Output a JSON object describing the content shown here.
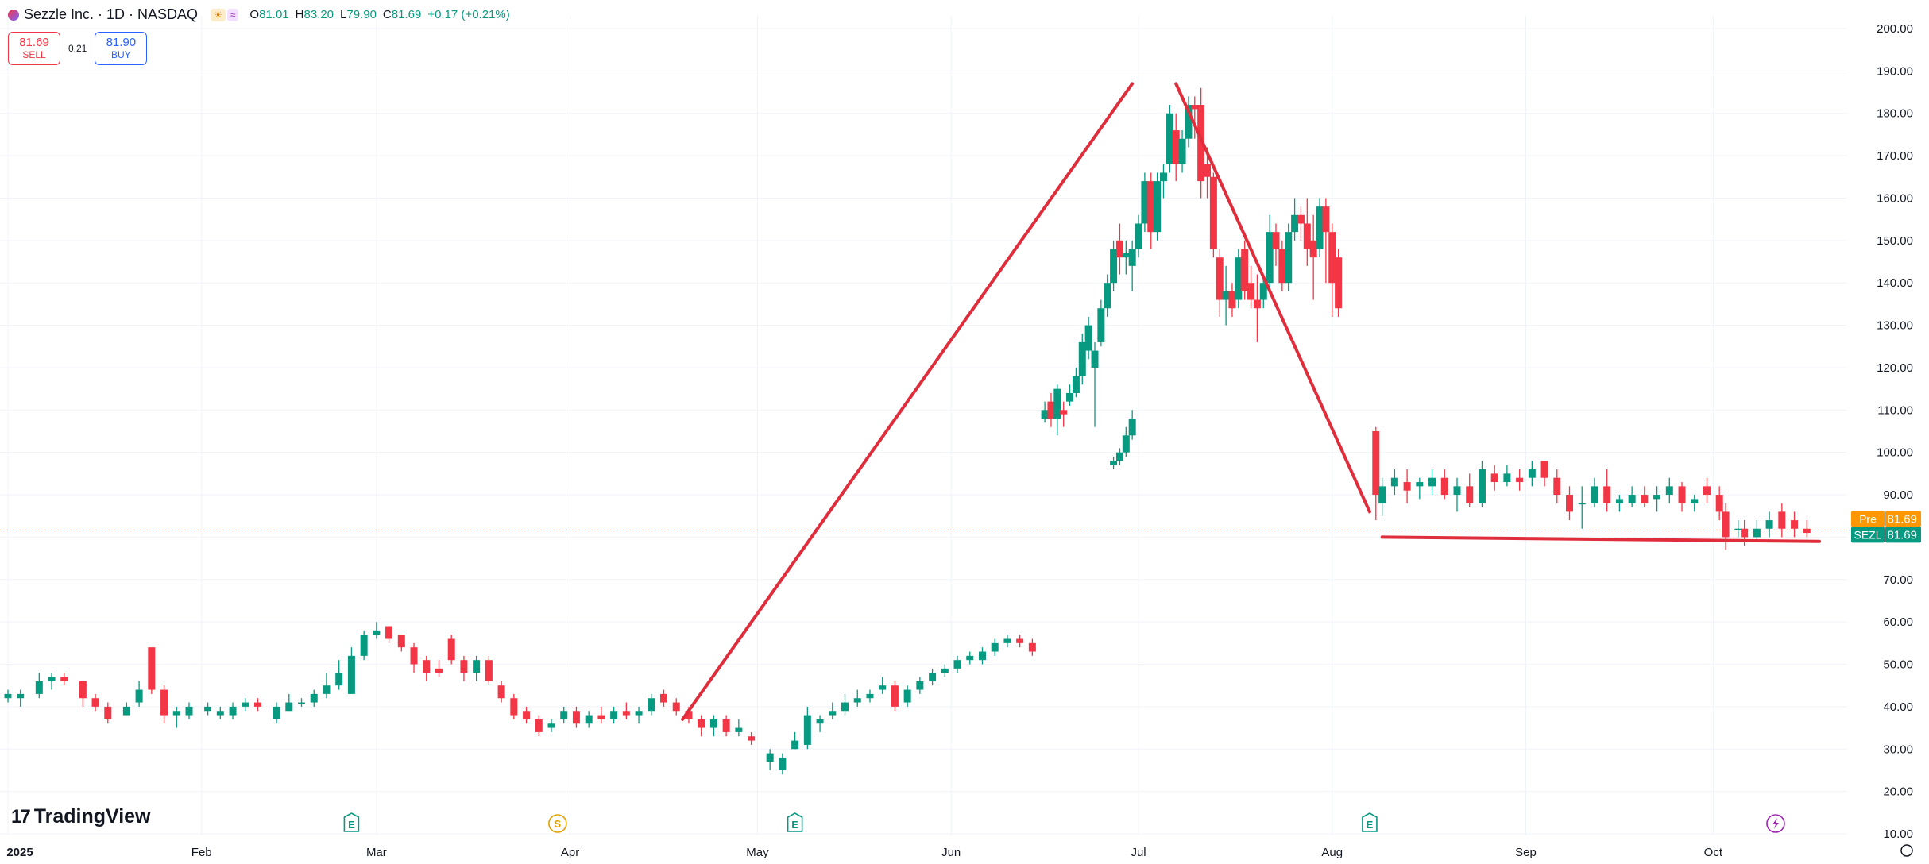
{
  "header": {
    "title": "Sezzle Inc. · 1D · NASDAQ",
    "open_label": "O",
    "open": "81.01",
    "high_label": "H",
    "high": "83.20",
    "low_label": "L",
    "low": "79.90",
    "close_label": "C",
    "close": "81.69",
    "change": "+0.17 (+0.21%)"
  },
  "trade": {
    "sell_price": "81.69",
    "sell_label": "SELL",
    "spread": "0.21",
    "buy_price": "81.90",
    "buy_label": "BUY"
  },
  "branding": {
    "name": "TradingView"
  },
  "colors": {
    "up": "#089981",
    "down": "#f23645",
    "drawing": "#e02d3c",
    "pre_badge": "#ff9800",
    "accent": "#2962ff"
  },
  "chart_data": {
    "type": "candlestick",
    "symbol": "SEZL",
    "ylim": [
      10,
      200
    ],
    "y_ticks": [
      "200.00",
      "190.00",
      "180.00",
      "170.00",
      "160.00",
      "150.00",
      "140.00",
      "130.00",
      "120.00",
      "110.00",
      "100.00",
      "90.00",
      "80.00",
      "70.00",
      "60.00",
      "50.00",
      "40.00",
      "30.00",
      "20.00",
      "10.00"
    ],
    "x_ticks": [
      {
        "label": "2025",
        "date": "2025-01-01",
        "bold": true
      },
      {
        "label": "Feb",
        "date": "2025-02-01"
      },
      {
        "label": "Mar",
        "date": "2025-03-01"
      },
      {
        "label": "Apr",
        "date": "2025-04-01"
      },
      {
        "label": "May",
        "date": "2025-05-01"
      },
      {
        "label": "Jun",
        "date": "2025-06-01"
      },
      {
        "label": "Jul",
        "date": "2025-07-01"
      },
      {
        "label": "Aug",
        "date": "2025-08-01"
      },
      {
        "label": "Sep",
        "date": "2025-09-01"
      },
      {
        "label": "Oct",
        "date": "2025-10-01"
      }
    ],
    "last_price": "81.69",
    "price_labels": [
      {
        "tag": "Pre",
        "value": "81.69",
        "color": "#ff9800"
      },
      {
        "tag": "SEZL",
        "value": "81.69",
        "color": "#089981"
      }
    ],
    "events": [
      {
        "type": "E",
        "date": "2025-02-25"
      },
      {
        "type": "S",
        "date": "2025-03-30"
      },
      {
        "type": "E",
        "date": "2025-05-07"
      },
      {
        "type": "E",
        "date": "2025-08-07"
      },
      {
        "type": "lightning",
        "date": "2025-10-11"
      }
    ],
    "candles": [
      {
        "d": "2025-01-01",
        "o": 42,
        "h": 44,
        "l": 41,
        "c": 43
      },
      {
        "d": "2025-01-03",
        "o": 42,
        "h": 44,
        "l": 40,
        "c": 43
      },
      {
        "d": "2025-01-06",
        "o": 43,
        "h": 48,
        "l": 42,
        "c": 46
      },
      {
        "d": "2025-01-08",
        "o": 46,
        "h": 48,
        "l": 44,
        "c": 47
      },
      {
        "d": "2025-01-10",
        "o": 47,
        "h": 48,
        "l": 45,
        "c": 46
      },
      {
        "d": "2025-01-13",
        "o": 46,
        "h": 46,
        "l": 40,
        "c": 42
      },
      {
        "d": "2025-01-15",
        "o": 42,
        "h": 43,
        "l": 39,
        "c": 40
      },
      {
        "d": "2025-01-17",
        "o": 40,
        "h": 41,
        "l": 36,
        "c": 37
      },
      {
        "d": "2025-01-20",
        "o": 38,
        "h": 41,
        "l": 38,
        "c": 40
      },
      {
        "d": "2025-01-22",
        "o": 41,
        "h": 46,
        "l": 40,
        "c": 44
      },
      {
        "d": "2025-01-24",
        "o": 54,
        "h": 54,
        "l": 43,
        "c": 44
      },
      {
        "d": "2025-01-26",
        "o": 44,
        "h": 45,
        "l": 36,
        "c": 38
      },
      {
        "d": "2025-01-28",
        "o": 38,
        "h": 40,
        "l": 35,
        "c": 39
      },
      {
        "d": "2025-01-30",
        "o": 38,
        "h": 41,
        "l": 37,
        "c": 40
      },
      {
        "d": "2025-02-02",
        "o": 39,
        "h": 41,
        "l": 38,
        "c": 40
      },
      {
        "d": "2025-02-04",
        "o": 38,
        "h": 40,
        "l": 37,
        "c": 39
      },
      {
        "d": "2025-02-06",
        "o": 38,
        "h": 41,
        "l": 37,
        "c": 40
      },
      {
        "d": "2025-02-08",
        "o": 40,
        "h": 42,
        "l": 39,
        "c": 41
      },
      {
        "d": "2025-02-10",
        "o": 41,
        "h": 42,
        "l": 39,
        "c": 40
      },
      {
        "d": "2025-02-13",
        "o": 37,
        "h": 41,
        "l": 36,
        "c": 40
      },
      {
        "d": "2025-02-15",
        "o": 39,
        "h": 43,
        "l": 39,
        "c": 41
      },
      {
        "d": "2025-02-17",
        "o": 41,
        "h": 42,
        "l": 40,
        "c": 41
      },
      {
        "d": "2025-02-19",
        "o": 41,
        "h": 44,
        "l": 40,
        "c": 43
      },
      {
        "d": "2025-02-21",
        "o": 43,
        "h": 48,
        "l": 42,
        "c": 45
      },
      {
        "d": "2025-02-23",
        "o": 45,
        "h": 51,
        "l": 44,
        "c": 48
      },
      {
        "d": "2025-02-25",
        "o": 43,
        "h": 54,
        "l": 43,
        "c": 52
      },
      {
        "d": "2025-02-27",
        "o": 52,
        "h": 58,
        "l": 51,
        "c": 57
      },
      {
        "d": "2025-03-01",
        "o": 57,
        "h": 60,
        "l": 56,
        "c": 58
      },
      {
        "d": "2025-03-03",
        "o": 59,
        "h": 59,
        "l": 55,
        "c": 56
      },
      {
        "d": "2025-03-05",
        "o": 57,
        "h": 57,
        "l": 53,
        "c": 54
      },
      {
        "d": "2025-03-07",
        "o": 54,
        "h": 55,
        "l": 48,
        "c": 50
      },
      {
        "d": "2025-03-09",
        "o": 51,
        "h": 52,
        "l": 46,
        "c": 48
      },
      {
        "d": "2025-03-11",
        "o": 49,
        "h": 51,
        "l": 47,
        "c": 48
      },
      {
        "d": "2025-03-13",
        "o": 56,
        "h": 57,
        "l": 50,
        "c": 51
      },
      {
        "d": "2025-03-15",
        "o": 51,
        "h": 52,
        "l": 46,
        "c": 48
      },
      {
        "d": "2025-03-17",
        "o": 48,
        "h": 52,
        "l": 46,
        "c": 51
      },
      {
        "d": "2025-03-19",
        "o": 51,
        "h": 52,
        "l": 45,
        "c": 46
      },
      {
        "d": "2025-03-21",
        "o": 45,
        "h": 46,
        "l": 41,
        "c": 42
      },
      {
        "d": "2025-03-23",
        "o": 42,
        "h": 43,
        "l": 37,
        "c": 38
      },
      {
        "d": "2025-03-25",
        "o": 39,
        "h": 40,
        "l": 36,
        "c": 37
      },
      {
        "d": "2025-03-27",
        "o": 37,
        "h": 38,
        "l": 33,
        "c": 34
      },
      {
        "d": "2025-03-29",
        "o": 35,
        "h": 37,
        "l": 34,
        "c": 36
      },
      {
        "d": "2025-03-31",
        "o": 37,
        "h": 40,
        "l": 36,
        "c": 39
      },
      {
        "d": "2025-04-02",
        "o": 39,
        "h": 40,
        "l": 35,
        "c": 36
      },
      {
        "d": "2025-04-04",
        "o": 36,
        "h": 39,
        "l": 35,
        "c": 38
      },
      {
        "d": "2025-04-06",
        "o": 38,
        "h": 40,
        "l": 36,
        "c": 37
      },
      {
        "d": "2025-04-08",
        "o": 37,
        "h": 40,
        "l": 36,
        "c": 39
      },
      {
        "d": "2025-04-10",
        "o": 39,
        "h": 41,
        "l": 37,
        "c": 38
      },
      {
        "d": "2025-04-12",
        "o": 38,
        "h": 40,
        "l": 36,
        "c": 39
      },
      {
        "d": "2025-04-14",
        "o": 39,
        "h": 43,
        "l": 38,
        "c": 42
      },
      {
        "d": "2025-04-16",
        "o": 43,
        "h": 44,
        "l": 40,
        "c": 41
      },
      {
        "d": "2025-04-18",
        "o": 41,
        "h": 42,
        "l": 38,
        "c": 39
      },
      {
        "d": "2025-04-20",
        "o": 39,
        "h": 40,
        "l": 36,
        "c": 37
      },
      {
        "d": "2025-04-22",
        "o": 37,
        "h": 38,
        "l": 33,
        "c": 35
      },
      {
        "d": "2025-04-24",
        "o": 35,
        "h": 38,
        "l": 33,
        "c": 37
      },
      {
        "d": "2025-04-26",
        "o": 37,
        "h": 38,
        "l": 33,
        "c": 34
      },
      {
        "d": "2025-04-28",
        "o": 34,
        "h": 37,
        "l": 33,
        "c": 35
      },
      {
        "d": "2025-04-30",
        "o": 33,
        "h": 34,
        "l": 31,
        "c": 32
      },
      {
        "d": "2025-05-03",
        "o": 27,
        "h": 30,
        "l": 25,
        "c": 29
      },
      {
        "d": "2025-05-05",
        "o": 25,
        "h": 29,
        "l": 24,
        "c": 28
      },
      {
        "d": "2025-05-07",
        "o": 30,
        "h": 34,
        "l": 30,
        "c": 32
      },
      {
        "d": "2025-05-09",
        "o": 31,
        "h": 40,
        "l": 30,
        "c": 38
      },
      {
        "d": "2025-05-11",
        "o": 36,
        "h": 38,
        "l": 34,
        "c": 37
      },
      {
        "d": "2025-05-13",
        "o": 38,
        "h": 41,
        "l": 37,
        "c": 39
      },
      {
        "d": "2025-05-15",
        "o": 39,
        "h": 43,
        "l": 38,
        "c": 41
      },
      {
        "d": "2025-05-17",
        "o": 41,
        "h": 44,
        "l": 40,
        "c": 42
      },
      {
        "d": "2025-05-19",
        "o": 42,
        "h": 44,
        "l": 41,
        "c": 43
      },
      {
        "d": "2025-05-21",
        "o": 44,
        "h": 47,
        "l": 43,
        "c": 45
      },
      {
        "d": "2025-05-23",
        "o": 45,
        "h": 46,
        "l": 39,
        "c": 40
      },
      {
        "d": "2025-05-25",
        "o": 41,
        "h": 45,
        "l": 40,
        "c": 44
      },
      {
        "d": "2025-05-27",
        "o": 44,
        "h": 47,
        "l": 43,
        "c": 46
      },
      {
        "d": "2025-05-29",
        "o": 46,
        "h": 49,
        "l": 45,
        "c": 48
      },
      {
        "d": "2025-05-31",
        "o": 48,
        "h": 50,
        "l": 47,
        "c": 49
      },
      {
        "d": "2025-06-02",
        "o": 49,
        "h": 52,
        "l": 48,
        "c": 51
      },
      {
        "d": "2025-06-04",
        "o": 51,
        "h": 53,
        "l": 50,
        "c": 52
      },
      {
        "d": "2025-06-06",
        "o": 51,
        "h": 54,
        "l": 50,
        "c": 53
      },
      {
        "d": "2025-06-08",
        "o": 53,
        "h": 56,
        "l": 52,
        "c": 55
      },
      {
        "d": "2025-06-10",
        "o": 55,
        "h": 57,
        "l": 54,
        "c": 56
      },
      {
        "d": "2025-06-12",
        "o": 56,
        "h": 57,
        "l": 54,
        "c": 55
      },
      {
        "d": "2025-06-14",
        "o": 55,
        "h": 56,
        "l": 52,
        "c": 53
      }
    ],
    "candles_note_skip": false,
    "trend_lines": [
      {
        "x1": "2025-04-19",
        "y1": 37,
        "x2": "2025-06-30",
        "y2": 187
      },
      {
        "x1": "2025-07-07",
        "y1": 187,
        "x2": "2025-08-07",
        "y2": 86
      },
      {
        "x1": "2025-08-09",
        "y1": 80,
        "x2": "2025-10-18",
        "y2": 79
      }
    ]
  }
}
